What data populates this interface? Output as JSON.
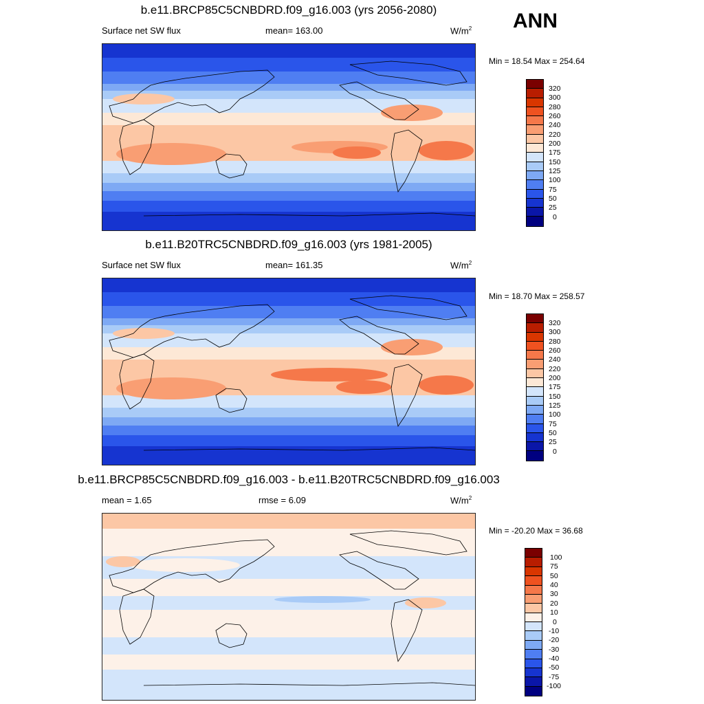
{
  "season": "ANN",
  "panels": [
    {
      "title": "b.e11.BRCP85C5CNBDRD.f09_g16.003 (yrs 2056-2080)",
      "left_label": "Surface net SW flux",
      "center_label": "mean= 163.00",
      "units": "W/m",
      "units_sup": "2",
      "minmax": "Min =  18.54 Max = 254.64",
      "colorbar_labels": [
        "320",
        "300",
        "280",
        "260",
        "240",
        "220",
        "200",
        "175",
        "150",
        "125",
        "100",
        "75",
        "50",
        "25",
        "0"
      ]
    },
    {
      "title": "b.e11.B20TRC5CNBDRD.f09_g16.003 (yrs 1981-2005)",
      "left_label": "Surface net SW flux",
      "center_label": "mean= 161.35",
      "units": "W/m",
      "units_sup": "2",
      "minmax": "Min =  18.70 Max = 258.57",
      "colorbar_labels": [
        "320",
        "300",
        "280",
        "260",
        "240",
        "220",
        "200",
        "175",
        "150",
        "125",
        "100",
        "75",
        "50",
        "25",
        "0"
      ]
    },
    {
      "title": "b.e11.BRCP85C5CNBDRD.f09_g16.003 - b.e11.B20TRC5CNBDRD.f09_g16.003",
      "left_label": "mean =   1.65",
      "center_label": "rmse =    6.09",
      "units": "W/m",
      "units_sup": "2",
      "minmax": "Min = -20.20 Max =  36.68",
      "colorbar_labels": [
        "100",
        "75",
        "50",
        "40",
        "30",
        "20",
        "10",
        "0",
        "-10",
        "-20",
        "-30",
        "-40",
        "-50",
        "-75",
        "-100"
      ]
    }
  ],
  "colors": {
    "abs_scale": [
      "#7a0000",
      "#b81d00",
      "#d93600",
      "#ef5220",
      "#f5784a",
      "#f99e73",
      "#fcc7a5",
      "#fde8d6",
      "#d3e5fb",
      "#a9cbf7",
      "#7ea9f4",
      "#4f7ef2",
      "#2a55ea",
      "#1634d0",
      "#0a16a8",
      "#000080"
    ],
    "diff_scale": [
      "#7a0000",
      "#b81d00",
      "#d93600",
      "#ef5220",
      "#f5784a",
      "#f99e73",
      "#fcc7a5",
      "#fdf1e8",
      "#d3e5fb",
      "#a9cbf7",
      "#7ea9f4",
      "#4f7ef2",
      "#2a55ea",
      "#1634d0",
      "#0a16a8",
      "#000080"
    ]
  }
}
